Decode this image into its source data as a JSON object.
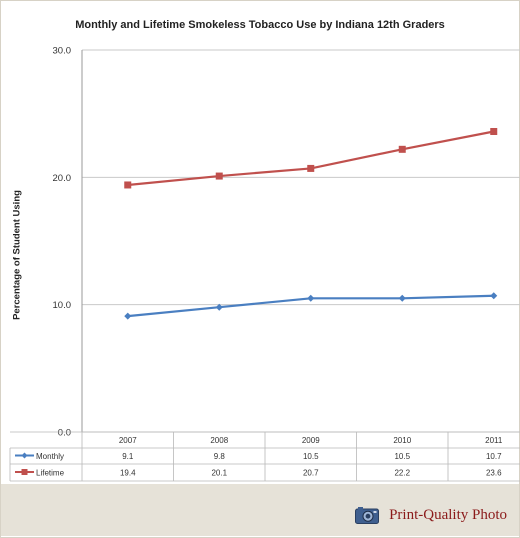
{
  "chart_data": {
    "type": "line",
    "title": "Monthly and Lifetime Smokeless Tobacco Use by Indiana 12th Graders",
    "ylabel": "Percentage of Student Using",
    "xlabel": "",
    "ylim": [
      0,
      30
    ],
    "yticks": [
      "0.0",
      "10.0",
      "20.0",
      "30.0"
    ],
    "ytick_values": [
      0,
      10,
      20,
      30
    ],
    "categories": [
      "2007",
      "2008",
      "2009",
      "2010",
      "2011"
    ],
    "grid": true,
    "legend": "data table below chart",
    "series": [
      {
        "name": "Monthly",
        "color": "#4a7fc1",
        "marker": "diamond",
        "values": [
          9.1,
          9.8,
          10.5,
          10.5,
          10.7
        ],
        "labels": [
          "9.1",
          "9.8",
          "10.5",
          "10.5",
          "10.7"
        ]
      },
      {
        "name": "Lifetime",
        "color": "#c0504d",
        "marker": "square",
        "values": [
          19.4,
          20.1,
          20.7,
          22.2,
          23.6
        ],
        "labels": [
          "19.4",
          "20.1",
          "20.7",
          "22.2",
          "23.6"
        ]
      }
    ]
  },
  "footer": {
    "link_label": "Print-Quality Photo",
    "icon": "camera-icon"
  }
}
